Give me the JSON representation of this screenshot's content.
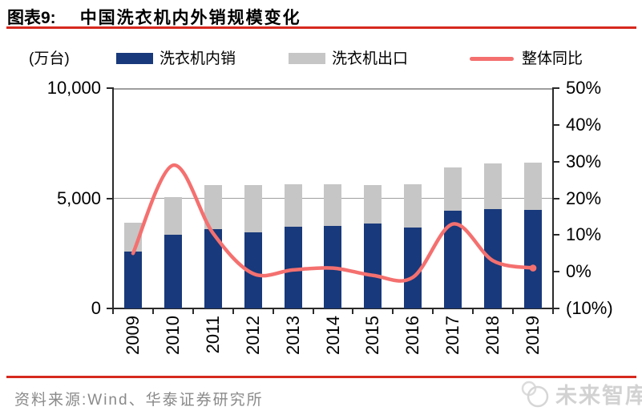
{
  "header": {
    "label": "图表9:",
    "title": "中国洗衣机内外销规模变化"
  },
  "chart_data": {
    "type": "combo_stacked_bar_line",
    "title": "中国洗衣机内外销规模变化",
    "unit_label": "(万台)",
    "categories": [
      "2009",
      "2010",
      "2011",
      "2012",
      "2013",
      "2014",
      "2015",
      "2016",
      "2017",
      "2018",
      "2019"
    ],
    "series": [
      {
        "name": "洗衣机内销",
        "type": "bar",
        "stack": "total",
        "axis": "left",
        "color": "#18397B",
        "values": [
          2600,
          3350,
          3600,
          3450,
          3720,
          3740,
          3870,
          3680,
          4450,
          4500,
          4480
        ]
      },
      {
        "name": "洗衣机出口",
        "type": "bar",
        "stack": "total",
        "axis": "left",
        "color": "#C6C6C6",
        "values": [
          1300,
          1700,
          2000,
          2150,
          1900,
          1890,
          1720,
          1940,
          1950,
          2100,
          2130
        ]
      },
      {
        "name": "整体同比",
        "type": "line",
        "axis": "right",
        "color": "#F4706F",
        "values_pct": [
          5,
          29,
          10.5,
          -0.5,
          0.5,
          1,
          -1,
          -1.5,
          13,
          3,
          1
        ]
      }
    ],
    "left_axis": {
      "range": [
        0,
        10000
      ],
      "tick_labels": [
        "10,000",
        "5,000",
        "0"
      ]
    },
    "right_axis": {
      "range_pct": [
        -10,
        50
      ],
      "tick_labels": [
        "50%",
        "40%",
        "30%",
        "20%",
        "10%",
        "0%",
        "(10%)"
      ]
    },
    "legend_position": "top",
    "gridlines": "horizontal at 5,000 and 10,000"
  },
  "footer": {
    "source": "资料来源:Wind、华泰证券研究所",
    "watermark": "未来智库"
  },
  "colors": {
    "accent_rule_red": "#D6291E",
    "source_text_gray": "#8A8A8A",
    "watermark_gray": "#D2D2D2"
  }
}
